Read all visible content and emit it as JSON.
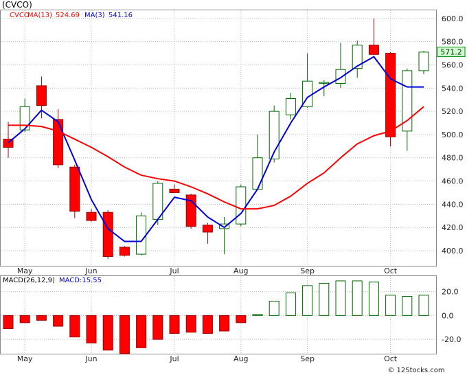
{
  "chart_data": [
    {
      "type": "candlestick",
      "title": "(CVCO)",
      "legend": [
        {
          "text": "CVCO",
          "color": "#ff0000"
        },
        {
          "text": "MA(13)",
          "color": "#ff0000"
        },
        {
          "text": "524.69",
          "color": "#ff0000"
        },
        {
          "text": "MA(3)",
          "color": "#0000dd"
        },
        {
          "text": "541.16",
          "color": "#0000dd"
        }
      ],
      "ylim": [
        387,
        607
      ],
      "yticks": [
        "400.0",
        "420.0",
        "440.0",
        "460.0",
        "480.0",
        "500.0",
        "520.0",
        "540.0",
        "560.0",
        "580.0",
        "600.0"
      ],
      "last_price": "571.2",
      "last_price_value": 571.2,
      "xticks": [
        {
          "label": "May",
          "index": 1
        },
        {
          "label": "Jun",
          "index": 5
        },
        {
          "label": "Jul",
          "index": 10
        },
        {
          "label": "Aug",
          "index": 14
        },
        {
          "label": "Sep",
          "index": 18
        },
        {
          "label": "Oct",
          "index": 23
        }
      ],
      "ohlc": [
        [
          496,
          511,
          480,
          489
        ],
        [
          504,
          531,
          502,
          524
        ],
        [
          542,
          550,
          514,
          525
        ],
        [
          513,
          522,
          471,
          474
        ],
        [
          472,
          474,
          428,
          434
        ],
        [
          433,
          436,
          425,
          426
        ],
        [
          433,
          435,
          393,
          395
        ],
        [
          403,
          404,
          395,
          396
        ],
        [
          397,
          433,
          396,
          430
        ],
        [
          427,
          460,
          422,
          458
        ],
        [
          453,
          457,
          451,
          450
        ],
        [
          448,
          449,
          419,
          421
        ],
        [
          422,
          424,
          406,
          416
        ],
        [
          419,
          429,
          397,
          423
        ],
        [
          423,
          457,
          421,
          455
        ],
        [
          453,
          500,
          452,
          480
        ],
        [
          479,
          525,
          476,
          520
        ],
        [
          517,
          536,
          513,
          531
        ],
        [
          524,
          570,
          523,
          546
        ],
        [
          545,
          547,
          533,
          545
        ],
        [
          544,
          579,
          540,
          556
        ],
        [
          557,
          581,
          549,
          577
        ],
        [
          577,
          600,
          571,
          569
        ],
        [
          570,
          571,
          490,
          498
        ],
        [
          503,
          557,
          486,
          555
        ],
        [
          555,
          572,
          552,
          571
        ]
      ],
      "series": [
        {
          "name": "MA(3)",
          "color": "#0000dd",
          "values": [
            493,
            505,
            521,
            511,
            478,
            444,
            419,
            408,
            408,
            427,
            446,
            443,
            429,
            420,
            432,
            453,
            485,
            510,
            532,
            541,
            549,
            559,
            567,
            548,
            541,
            541
          ]
        },
        {
          "name": "MA(13)",
          "color": "#ff0000",
          "values": [
            508,
            508,
            507,
            503,
            496,
            489,
            481,
            472,
            465,
            462,
            460,
            455,
            449,
            442,
            436,
            436,
            439,
            447,
            458,
            467,
            480,
            492,
            499,
            503,
            512,
            524
          ]
        }
      ]
    },
    {
      "type": "bar",
      "title": "MACD(26,12,9)",
      "legend": [
        {
          "text": "MACD(26,12,9)",
          "color": "#000000"
        },
        {
          "text": "MACD:15.55",
          "color": "#0000dd"
        }
      ],
      "ylim": [
        -32,
        33
      ],
      "yticks": [
        "20.0",
        "0.0",
        "-20.0"
      ],
      "xticks": [
        {
          "label": "May",
          "index": 1
        },
        {
          "label": "Jun",
          "index": 5
        },
        {
          "label": "Jul",
          "index": 10
        },
        {
          "label": "Aug",
          "index": 14
        },
        {
          "label": "Sep",
          "index": 18
        },
        {
          "label": "Oct",
          "index": 23
        }
      ],
      "values": [
        -11,
        -6,
        -4,
        -9,
        -18,
        -23,
        -29,
        -32,
        -27,
        -20,
        -15,
        -14,
        -15,
        -13,
        -6,
        1,
        12,
        19,
        25,
        27,
        29,
        29,
        28,
        17,
        16,
        17
      ]
    }
  ],
  "watermark": "© 12Stocks.com"
}
